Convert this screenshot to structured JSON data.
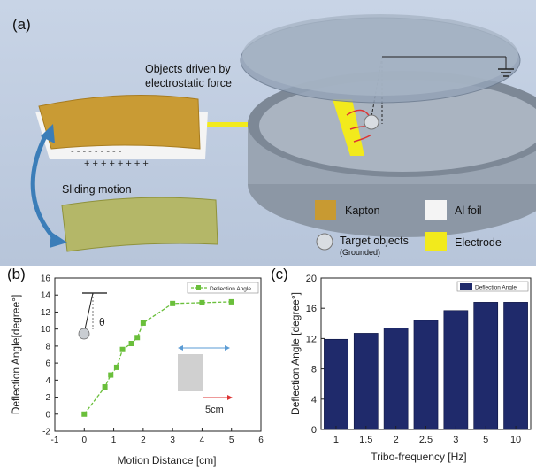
{
  "panel_a": {
    "letter": "(a)",
    "objects_label_line1": "Objects driven by",
    "objects_label_line2": "electrostatic force",
    "sliding_label": "Sliding motion",
    "legend": {
      "kapton": "Kapton",
      "al_foil": "Al foil",
      "target_line1": "Target objects",
      "target_line2": "(Grounded)",
      "electrode": "Electrode"
    },
    "colors": {
      "kapton": "#c89a32",
      "al_foil": "#f4f4f4",
      "electrode": "#f2ea1c",
      "background": "#bfcbdf"
    }
  },
  "panel_b": {
    "letter": "(b)",
    "theta_label": "θ",
    "scale_label": "5cm"
  },
  "panel_c": {
    "letter": "(c)"
  },
  "chart_data": [
    {
      "type": "line",
      "panel": "b",
      "xlabel": "Motion Distance [cm]",
      "ylabel": "Deflection Angle[degree°]",
      "xlim": [
        -1,
        6
      ],
      "ylim": [
        -2,
        16
      ],
      "xticks": [
        -1,
        0,
        1,
        2,
        3,
        4,
        5,
        6
      ],
      "yticks": [
        -2,
        0,
        2,
        4,
        6,
        8,
        10,
        12,
        14,
        16
      ],
      "legend_position": "top-right",
      "series": [
        {
          "name": "Deflection Angle",
          "color": "#6abf3b",
          "x": [
            0,
            0.7,
            0.9,
            1.1,
            1.3,
            1.6,
            1.8,
            2.0,
            3.0,
            4.0,
            5.0
          ],
          "y": [
            0,
            3.2,
            4.6,
            5.5,
            7.6,
            8.3,
            9.0,
            10.7,
            13.0,
            13.1,
            13.2
          ]
        }
      ]
    },
    {
      "type": "bar",
      "panel": "c",
      "xlabel": "Tribo-frequency [Hz]",
      "ylabel": "Deflection Angle [degree°]",
      "ylim": [
        0,
        20
      ],
      "yticks": [
        0,
        4,
        8,
        12,
        16,
        20
      ],
      "legend_position": "top-left",
      "categories": [
        "1",
        "1.5",
        "2",
        "2.5",
        "3",
        "5",
        "10"
      ],
      "series": [
        {
          "name": "Deflection Angle",
          "color": "#1f2a6b",
          "values": [
            11.9,
            12.7,
            13.4,
            14.4,
            15.7,
            16.8,
            16.8
          ]
        }
      ]
    }
  ]
}
